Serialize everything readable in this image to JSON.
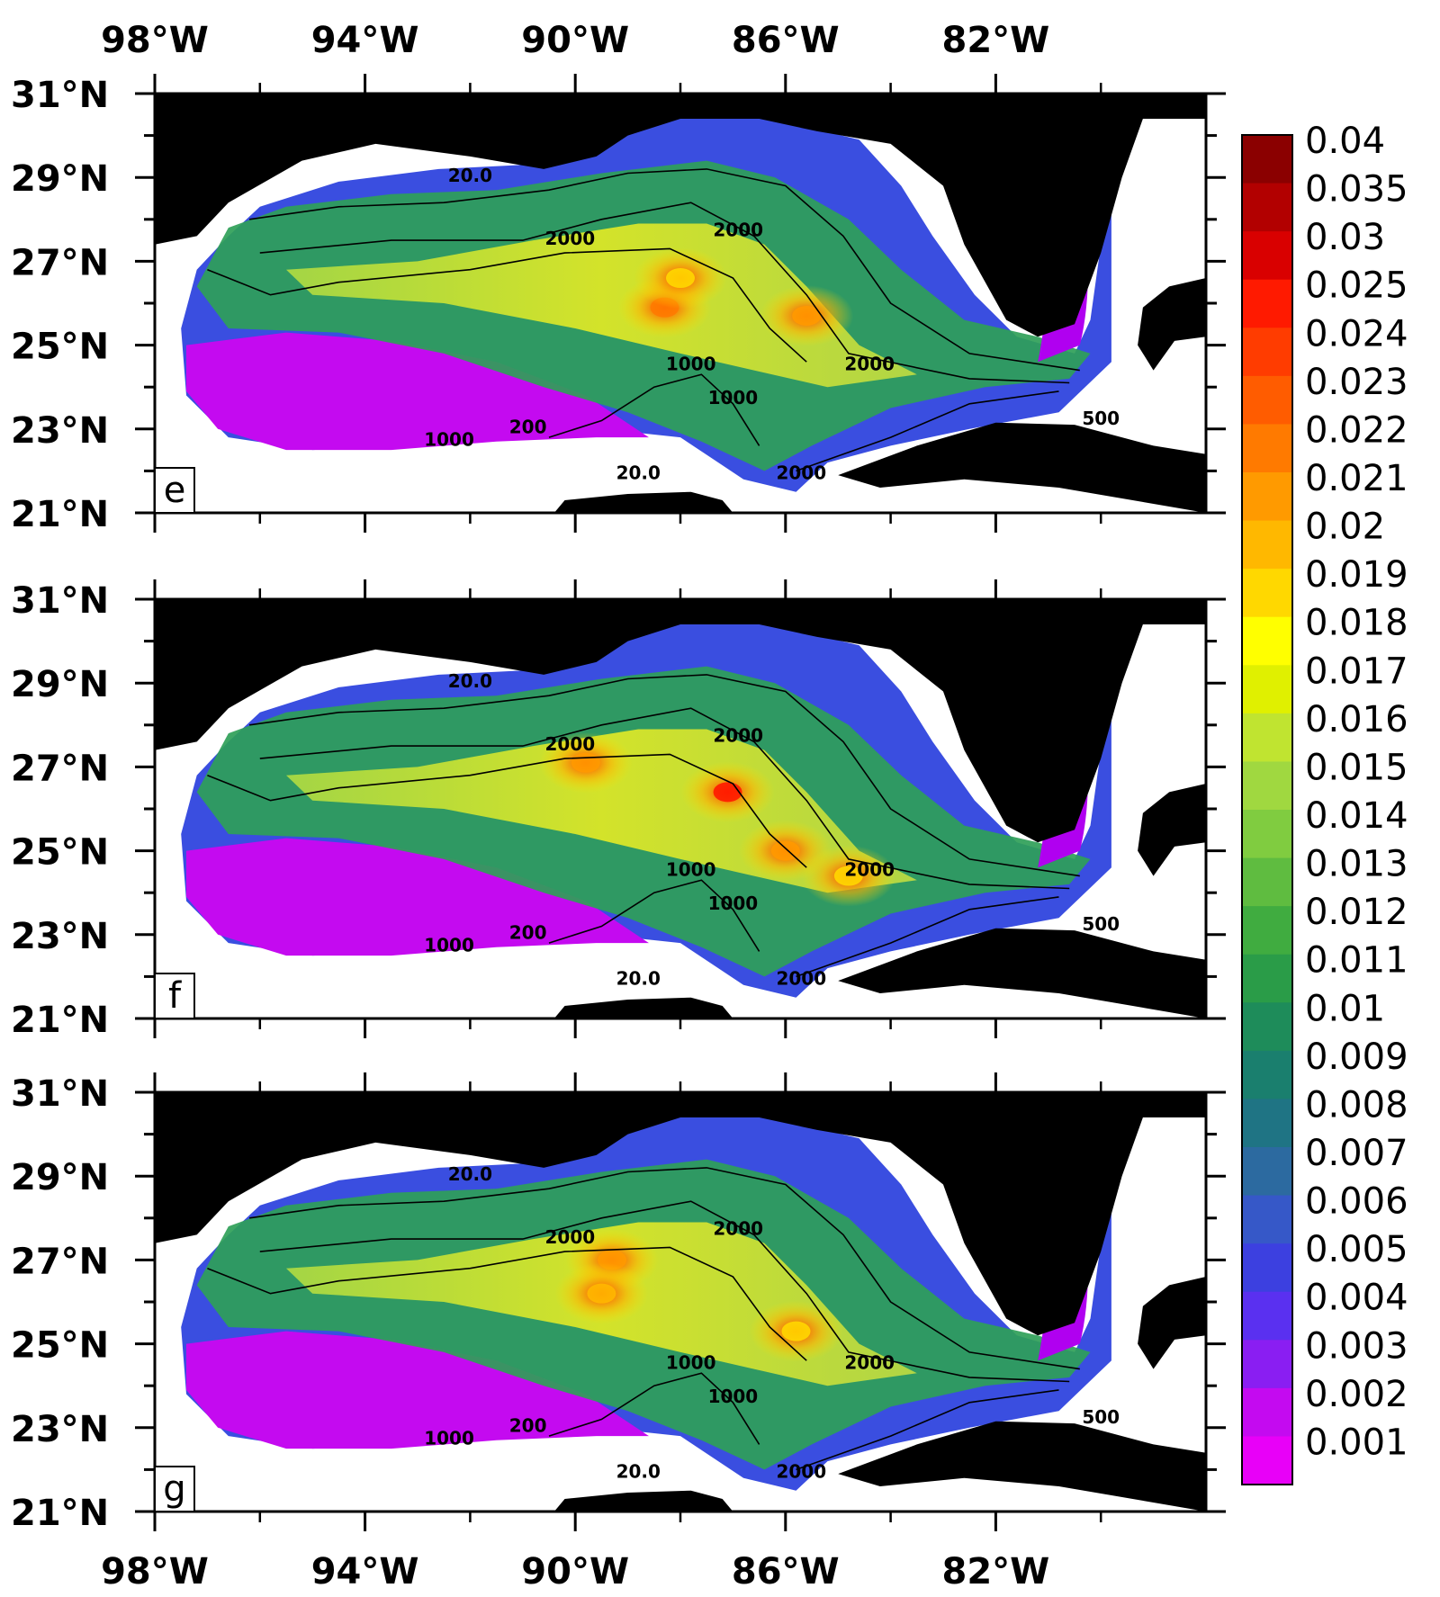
{
  "figure": {
    "lon_ticks": [
      "98°W",
      "94°W",
      "90°W",
      "86°W",
      "82°W"
    ],
    "lat_ticks": [
      "31°N",
      "29°N",
      "27°N",
      "25°N",
      "23°N",
      "21°N"
    ],
    "lon_range": [
      -98,
      -78
    ],
    "lat_range": [
      21,
      31
    ],
    "land_color": "#000000",
    "ocean_nodata_color": "#ffffff",
    "contour_labels": [
      "20.0",
      "2000",
      "2000",
      "2000",
      "1000",
      "1000",
      "200",
      "1000",
      "20.0",
      "2000",
      "500"
    ],
    "panels": [
      {
        "letter": "e",
        "hotspots": [
          {
            "lon": -88.3,
            "lat": 25.9,
            "value": 0.022
          },
          {
            "lon": -85.6,
            "lat": 25.7,
            "value": 0.021
          },
          {
            "lon": -88.0,
            "lat": 26.6,
            "value": 0.019
          }
        ]
      },
      {
        "letter": "f",
        "hotspots": [
          {
            "lon": -87.1,
            "lat": 26.4,
            "value": 0.025
          },
          {
            "lon": -89.8,
            "lat": 27.1,
            "value": 0.021
          },
          {
            "lon": -86.0,
            "lat": 25.0,
            "value": 0.021
          },
          {
            "lon": -84.8,
            "lat": 24.4,
            "value": 0.019
          }
        ]
      },
      {
        "letter": "g",
        "hotspots": [
          {
            "lon": -89.3,
            "lat": 27.0,
            "value": 0.021
          },
          {
            "lon": -89.5,
            "lat": 26.2,
            "value": 0.02
          },
          {
            "lon": -85.8,
            "lat": 25.3,
            "value": 0.019
          }
        ]
      }
    ]
  },
  "colorbar": {
    "labels": [
      "0.04",
      "0.035",
      "0.03",
      "0.025",
      "0.024",
      "0.023",
      "0.022",
      "0.021",
      "0.02",
      "0.019",
      "0.018",
      "0.017",
      "0.016",
      "0.015",
      "0.014",
      "0.013",
      "0.012",
      "0.011",
      "0.01",
      "0.009",
      "0.008",
      "0.007",
      "0.006",
      "0.005",
      "0.004",
      "0.003",
      "0.002",
      "0.001"
    ],
    "colors": [
      "#8b0000",
      "#b20000",
      "#d90000",
      "#ff1a00",
      "#ff3c00",
      "#ff5c00",
      "#ff7a00",
      "#ff9a00",
      "#ffb800",
      "#ffd800",
      "#ffff00",
      "#e0f000",
      "#c0e430",
      "#a0d840",
      "#80cc40",
      "#5fbc40",
      "#40ac40",
      "#2a9c48",
      "#1e8c5a",
      "#1a7f6e",
      "#1f7484",
      "#2c6aa0",
      "#3658c8",
      "#3c40e0",
      "#5a30f0",
      "#8a1ef2",
      "#c40af0",
      "#e800f8"
    ]
  }
}
